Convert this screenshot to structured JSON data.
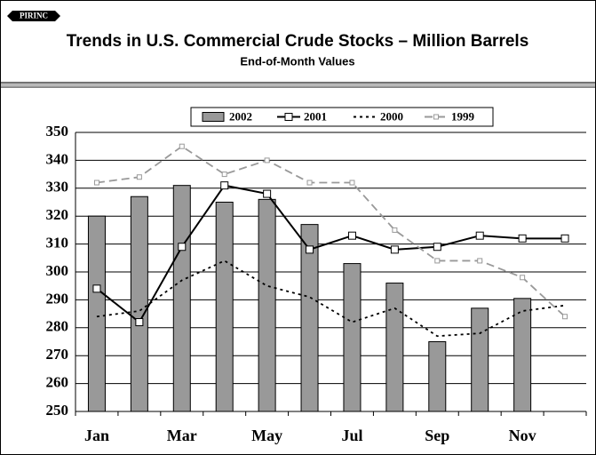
{
  "logo": "PIRINC",
  "chart_data": {
    "type": "bar",
    "title": "Trends in U.S. Commercial Crude Stocks – Million Barrels",
    "subtitle": "End-of-Month Values",
    "categories": [
      "Jan",
      null,
      "Mar",
      null,
      "May",
      null,
      "Jul",
      null,
      "Sep",
      null,
      "Nov",
      null
    ],
    "series": [
      {
        "name": "2002",
        "type": "bar",
        "color": "#999999",
        "values": [
          320,
          327,
          331,
          325,
          326,
          317,
          303,
          296,
          275,
          287,
          290.5,
          null
        ]
      },
      {
        "name": "2001",
        "type": "line",
        "style": "solid",
        "marker": true,
        "color": "#000000",
        "values": [
          294,
          282,
          309,
          331,
          328,
          308,
          313,
          308,
          309,
          313,
          312,
          312
        ]
      },
      {
        "name": "2000",
        "type": "line",
        "style": "dotted",
        "marker": false,
        "color": "#000000",
        "values": [
          284,
          286,
          297,
          304,
          295,
          291,
          282,
          287,
          277,
          278,
          286,
          288
        ]
      },
      {
        "name": "1999",
        "type": "line",
        "style": "dashed",
        "marker": true,
        "color": "#999999",
        "values": [
          332,
          334,
          345,
          335,
          340,
          332,
          332,
          315,
          304,
          304,
          298,
          284
        ]
      }
    ],
    "ylim": [
      250,
      350
    ],
    "yticks": [
      250,
      260,
      270,
      280,
      290,
      300,
      310,
      320,
      330,
      340,
      350
    ],
    "grid": true,
    "legend": "top"
  }
}
